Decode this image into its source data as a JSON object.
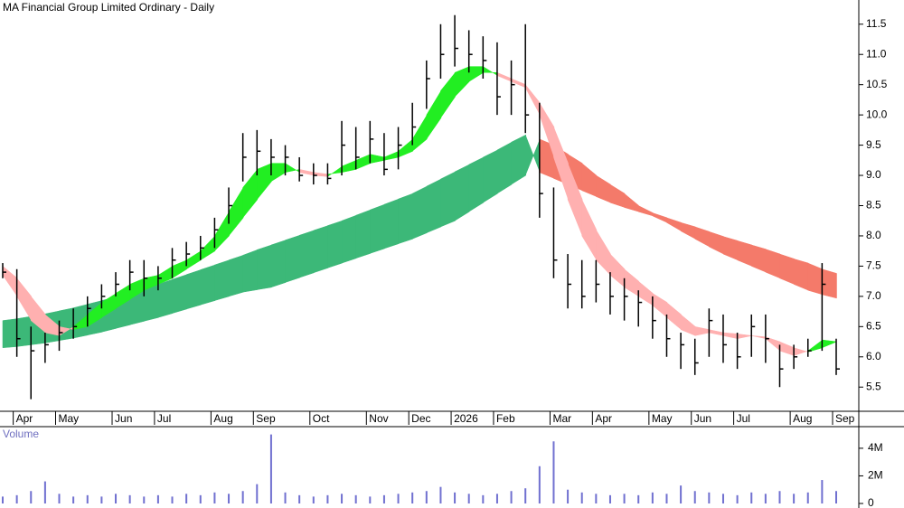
{
  "chart_data": [
    {
      "type": "ohlc",
      "title": "MA Financial Group Limited Ordinary - Daily",
      "categories": [
        null,
        "Apr",
        null,
        null,
        "May",
        null,
        null,
        null,
        "Jun",
        null,
        null,
        "Jul",
        null,
        null,
        null,
        "Aug",
        null,
        null,
        "Sep",
        null,
        null,
        null,
        "Oct",
        null,
        null,
        null,
        "Nov",
        null,
        null,
        "Dec",
        null,
        null,
        "2026",
        null,
        null,
        "Feb",
        null,
        null,
        null,
        "Mar",
        null,
        null,
        "Apr",
        null,
        null,
        null,
        "May",
        null,
        null,
        "Jun",
        null,
        null,
        "Jul",
        null,
        null,
        null,
        "Aug",
        null,
        null,
        "Sep"
      ],
      "high": [
        7.55,
        7.45,
        6.5,
        6.4,
        6.6,
        6.8,
        7.0,
        7.2,
        7.4,
        7.6,
        7.6,
        7.5,
        7.8,
        7.9,
        8.0,
        8.3,
        8.8,
        9.7,
        9.75,
        9.6,
        9.5,
        9.3,
        9.2,
        9.2,
        9.9,
        9.8,
        9.9,
        9.7,
        9.8,
        10.2,
        10.9,
        11.5,
        11.65,
        11.4,
        11.3,
        11.2,
        10.9,
        11.5,
        10.2,
        8.8,
        7.7,
        7.6,
        7.6,
        7.4,
        7.3,
        7.1,
        7.0,
        6.7,
        6.4,
        6.3,
        6.8,
        6.7,
        6.4,
        6.7,
        6.7,
        6.2,
        6.2,
        6.3,
        7.55,
        6.3
      ],
      "low": [
        7.3,
        6.0,
        5.3,
        5.9,
        6.1,
        6.3,
        6.5,
        6.8,
        7.0,
        7.1,
        7.0,
        7.1,
        7.3,
        7.5,
        7.6,
        7.8,
        8.2,
        8.9,
        9.0,
        9.0,
        9.0,
        8.9,
        8.85,
        8.85,
        9.0,
        9.1,
        9.2,
        9.0,
        9.1,
        9.5,
        10.1,
        10.6,
        10.8,
        10.7,
        10.6,
        10.0,
        10.0,
        9.7,
        8.3,
        7.3,
        6.8,
        6.8,
        6.9,
        6.7,
        6.6,
        6.5,
        6.3,
        6.0,
        5.8,
        5.7,
        6.0,
        5.9,
        5.8,
        6.0,
        5.9,
        5.5,
        5.8,
        6.0,
        6.1,
        5.7
      ],
      "close": [
        7.4,
        6.3,
        6.1,
        6.2,
        6.4,
        6.5,
        6.8,
        7.0,
        7.2,
        7.4,
        7.3,
        7.3,
        7.6,
        7.7,
        7.8,
        8.1,
        8.5,
        9.3,
        9.4,
        9.3,
        9.3,
        9.0,
        9.0,
        8.95,
        9.5,
        9.3,
        9.6,
        9.1,
        9.5,
        9.8,
        10.6,
        11.0,
        11.1,
        11.0,
        10.9,
        10.3,
        10.5,
        10.0,
        8.7,
        7.6,
        7.2,
        7.0,
        7.2,
        7.0,
        7.0,
        6.9,
        6.6,
        6.3,
        6.2,
        5.9,
        6.6,
        6.2,
        6.0,
        6.5,
        6.3,
        5.8,
        6.0,
        6.1,
        7.2,
        5.8
      ],
      "color": "#000000",
      "ribbons": [
        {
          "fast": [
            6.6,
            6.63,
            6.67,
            6.71,
            6.76,
            6.81,
            6.87,
            6.93,
            6.99,
            7.06,
            7.13,
            7.2,
            7.28,
            7.36,
            7.44,
            7.52,
            7.6,
            7.68,
            7.77,
            7.85,
            7.93,
            8.01,
            8.09,
            8.17,
            8.25,
            8.34,
            8.43,
            8.52,
            8.61,
            8.7,
            8.82,
            8.94,
            9.06,
            9.18,
            9.3,
            9.42,
            9.55,
            9.67,
            9.05,
            8.95,
            8.85,
            8.75,
            8.65,
            8.55,
            8.47,
            8.4,
            8.33,
            8.22,
            8.08,
            7.95,
            7.82,
            7.7,
            7.6,
            7.5,
            7.4,
            7.3,
            7.2,
            7.1,
            7.03,
            6.97
          ],
          "slow": [
            6.15,
            6.17,
            6.2,
            6.23,
            6.27,
            6.31,
            6.36,
            6.41,
            6.47,
            6.53,
            6.59,
            6.65,
            6.72,
            6.79,
            6.86,
            6.93,
            7.0,
            7.07,
            7.11,
            7.15,
            7.23,
            7.31,
            7.39,
            7.47,
            7.55,
            7.63,
            7.71,
            7.79,
            7.87,
            7.95,
            8.05,
            8.15,
            8.25,
            8.4,
            8.55,
            8.7,
            8.85,
            9.0,
            9.6,
            9.5,
            9.35,
            9.2,
            9.0,
            8.85,
            8.7,
            8.5,
            8.38,
            8.3,
            8.22,
            8.15,
            8.07,
            7.99,
            7.92,
            7.85,
            7.78,
            7.7,
            7.62,
            7.55,
            7.45,
            7.38
          ],
          "up_color": "#3cb878",
          "down_color": "#f47a6a"
        },
        {
          "fast": [
            7.35,
            7.0,
            6.6,
            6.4,
            6.35,
            6.5,
            6.7,
            6.9,
            7.05,
            7.2,
            7.3,
            7.35,
            7.5,
            7.6,
            7.75,
            8.0,
            8.4,
            8.8,
            9.1,
            9.2,
            9.2,
            9.05,
            9.0,
            8.98,
            9.15,
            9.25,
            9.35,
            9.3,
            9.4,
            9.6,
            10.0,
            10.4,
            10.7,
            10.8,
            10.8,
            10.65,
            10.55,
            10.45,
            10.0,
            9.3,
            8.6,
            8.0,
            7.6,
            7.35,
            7.15,
            7.0,
            6.85,
            6.65,
            6.45,
            6.35,
            6.4,
            6.35,
            6.3,
            6.35,
            6.3,
            6.1,
            6.02,
            6.1,
            6.28,
            6.25
          ],
          "slow": [
            7.5,
            7.3,
            7.0,
            6.7,
            6.5,
            6.45,
            6.5,
            6.65,
            6.8,
            6.95,
            7.1,
            7.2,
            7.3,
            7.45,
            7.6,
            7.75,
            8.0,
            8.3,
            8.6,
            8.9,
            9.05,
            9.1,
            9.05,
            9.02,
            9.05,
            9.1,
            9.2,
            9.25,
            9.3,
            9.4,
            9.6,
            9.95,
            10.3,
            10.55,
            10.7,
            10.7,
            10.6,
            10.5,
            10.2,
            9.8,
            9.2,
            8.6,
            8.1,
            7.7,
            7.45,
            7.25,
            7.05,
            6.9,
            6.7,
            6.5,
            6.45,
            6.4,
            6.38,
            6.35,
            6.33,
            6.25,
            6.15,
            6.08,
            6.15,
            6.25
          ],
          "up_color": "#22ee22",
          "down_color": "#ffb0b0"
        }
      ],
      "ylim": [
        5.1,
        11.9
      ],
      "yticks": [
        5.5,
        {
          "value": 6,
          "label": "6.0"
        },
        6.5,
        {
          "value": 7,
          "label": "7.0"
        },
        7.5,
        {
          "value": 8,
          "label": "8.0"
        },
        8.5,
        {
          "value": 9,
          "label": "9.0"
        },
        9.5,
        {
          "value": 10,
          "label": "10.0"
        },
        10.5,
        {
          "value": 11,
          "label": "11.0"
        },
        11.5
      ]
    },
    {
      "type": "bar",
      "title": "Volume",
      "color": "#7070d0",
      "values": [
        500000,
        600000,
        900000,
        1600000,
        700000,
        500000,
        600000,
        500000,
        700000,
        600000,
        500000,
        600000,
        500000,
        700000,
        600000,
        800000,
        700000,
        900000,
        1400000,
        5000000,
        800000,
        600000,
        500000,
        600000,
        700000,
        600000,
        500000,
        600000,
        700000,
        800000,
        900000,
        1200000,
        800000,
        700000,
        600000,
        700000,
        900000,
        1100000,
        2700000,
        4500000,
        1000000,
        800000,
        700000,
        600000,
        700000,
        600000,
        800000,
        700000,
        1300000,
        900000,
        800000,
        700000,
        600000,
        800000,
        700000,
        900000,
        700000,
        800000,
        1700000,
        900000
      ],
      "ylim": [
        0,
        5500000
      ],
      "yticks": [
        0,
        {
          "value": 2000000,
          "label": "2M"
        },
        {
          "value": 4000000,
          "label": "4M"
        }
      ]
    }
  ]
}
